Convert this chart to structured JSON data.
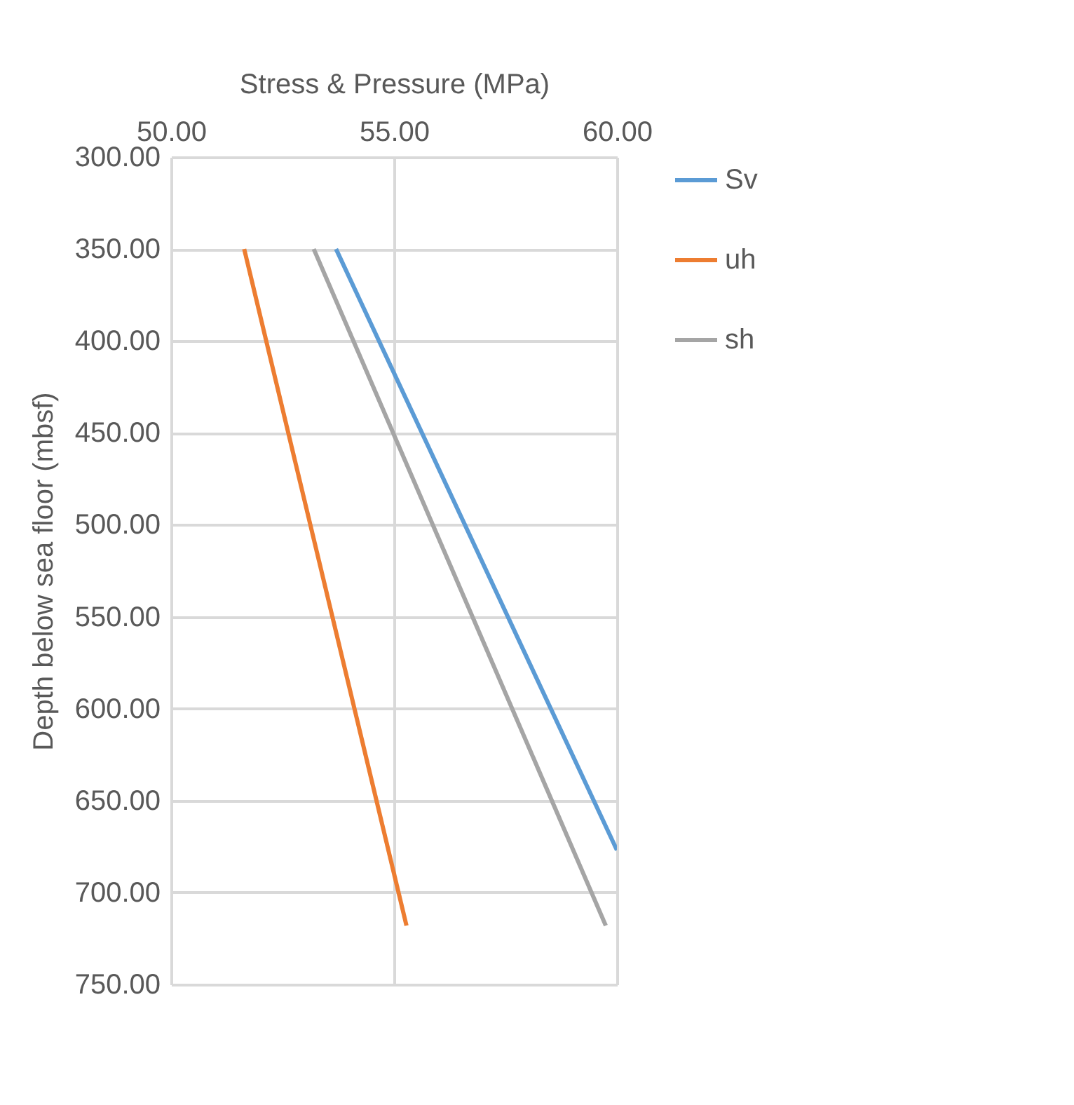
{
  "chart_data": {
    "type": "line",
    "xlabel": "Stress & Pressure (MPa)",
    "ylabel": "Depth below sea floor (mbsf)",
    "xlim": [
      50,
      60
    ],
    "xticks": [
      {
        "value": 50,
        "label": "50.00"
      },
      {
        "value": 55,
        "label": "55.00"
      },
      {
        "value": 60,
        "label": "60.00"
      }
    ],
    "ylim": [
      750,
      300
    ],
    "yticks": [
      {
        "value": 300,
        "label": "300.00"
      },
      {
        "value": 350,
        "label": "350.00"
      },
      {
        "value": 400,
        "label": "400.00"
      },
      {
        "value": 450,
        "label": "450.00"
      },
      {
        "value": 500,
        "label": "500.00"
      },
      {
        "value": 550,
        "label": "550.00"
      },
      {
        "value": 600,
        "label": "600.00"
      },
      {
        "value": 650,
        "label": "650.00"
      },
      {
        "value": 700,
        "label": "700.00"
      },
      {
        "value": 750,
        "label": "750.00"
      }
    ],
    "grid": true,
    "legend": "right",
    "marker": "none",
    "series": [
      {
        "name": "Sv",
        "color": "#5b9bd5",
        "x": [
          53.7,
          60
        ],
        "values": [
          350,
          677
        ]
      },
      {
        "name": "uh",
        "color": "#ed7d31",
        "x": [
          51.64,
          55.28
        ],
        "values": [
          350,
          718
        ]
      },
      {
        "name": "sh",
        "color": "#a5a5a5",
        "x": [
          53.2,
          59.75
        ],
        "values": [
          350,
          718
        ]
      }
    ]
  }
}
